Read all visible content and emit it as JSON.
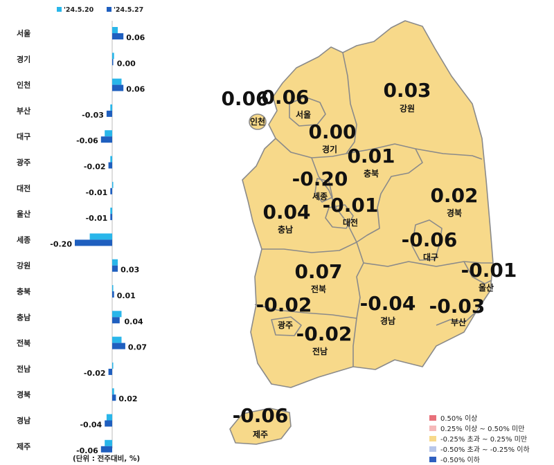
{
  "chart_data": {
    "type": "bar",
    "orientation": "horizontal",
    "series": [
      {
        "name": "'24.5.20",
        "color": "#29b6ea",
        "values": [
          0.03,
          0.01,
          0.05,
          -0.01,
          -0.04,
          -0.01,
          0.0,
          -0.01,
          -0.12,
          0.03,
          0.0,
          0.05,
          0.05,
          0.0,
          0.01,
          -0.03,
          -0.04
        ]
      },
      {
        "name": "'24.5.27",
        "color": "#1f5fbf",
        "values": [
          0.06,
          0.0,
          0.06,
          -0.03,
          -0.06,
          -0.02,
          -0.01,
          -0.01,
          -0.2,
          0.03,
          0.01,
          0.04,
          0.07,
          -0.02,
          0.02,
          -0.04,
          -0.06
        ]
      }
    ],
    "categories": [
      "서울",
      "경기",
      "인천",
      "부산",
      "대구",
      "광주",
      "대전",
      "울산",
      "세종",
      "강원",
      "충북",
      "충남",
      "전북",
      "전남",
      "경북",
      "경남",
      "제주"
    ],
    "value_labels": [
      "0.06",
      "0.00",
      "0.06",
      "-0.03",
      "-0.06",
      "-0.02",
      "-0.01",
      "-0.01",
      "-0.20",
      "0.03",
      "0.01",
      "0.04",
      "0.07",
      "-0.02",
      "0.02",
      "-0.04",
      "-0.06"
    ],
    "legend_placement": "top-left",
    "unit_note": "(단위 : 전주대비, %)"
  },
  "map": {
    "land_color": "#f7d98a",
    "border_color": "#8a8a8a",
    "regions": [
      {
        "name": "서울",
        "value": "0.06"
      },
      {
        "name": "인천",
        "value": "0.06"
      },
      {
        "name": "경기",
        "value": "0.00"
      },
      {
        "name": "강원",
        "value": "0.03"
      },
      {
        "name": "충북",
        "value": "0.01"
      },
      {
        "name": "세종",
        "value": "-0.20"
      },
      {
        "name": "대전",
        "value": "-0.01"
      },
      {
        "name": "충남",
        "value": "0.04"
      },
      {
        "name": "경북",
        "value": "0.02"
      },
      {
        "name": "대구",
        "value": "-0.06"
      },
      {
        "name": "울산",
        "value": "-0.01"
      },
      {
        "name": "전북",
        "value": "0.07"
      },
      {
        "name": "광주",
        "value": "-0.02"
      },
      {
        "name": "경남",
        "value": "-0.04"
      },
      {
        "name": "부산",
        "value": "-0.03"
      },
      {
        "name": "전남",
        "value": "-0.02"
      },
      {
        "name": "제주",
        "value": "-0.06"
      }
    ],
    "legend": [
      {
        "label": "0.50% 이상",
        "color": "#e8707a"
      },
      {
        "label": "0.25% 이상 ~ 0.50% 미만",
        "color": "#f5b9b9"
      },
      {
        "label": "-0.25% 초과 ~ 0.25% 미만",
        "color": "#f7d98a"
      },
      {
        "label": "-0.50% 초과 ~ -0.25% 이하",
        "color": "#b7c6ea"
      },
      {
        "label": "-0.50% 이하",
        "color": "#2e5fc0"
      }
    ]
  }
}
